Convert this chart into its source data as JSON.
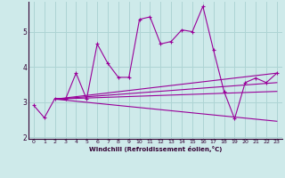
{
  "xlabel": "Windchill (Refroidissement éolien,°C)",
  "ylabel": "",
  "bg_color": "#ceeaea",
  "grid_color": "#aed4d4",
  "line_color": "#990099",
  "xlim": [
    -0.5,
    23.5
  ],
  "ylim": [
    1.95,
    5.85
  ],
  "xticks": [
    0,
    1,
    2,
    3,
    4,
    5,
    6,
    7,
    8,
    9,
    10,
    11,
    12,
    13,
    14,
    15,
    16,
    17,
    18,
    19,
    20,
    21,
    22,
    23
  ],
  "yticks": [
    2,
    3,
    4,
    5
  ],
  "main_x": [
    0,
    1,
    2,
    3,
    4,
    5,
    6,
    7,
    8,
    9,
    10,
    11,
    12,
    13,
    14,
    15,
    16,
    17,
    18,
    19,
    20,
    21,
    22,
    23
  ],
  "main_y": [
    2.9,
    2.55,
    3.1,
    3.08,
    3.82,
    3.08,
    4.65,
    4.1,
    3.7,
    3.7,
    5.35,
    5.42,
    4.65,
    4.72,
    5.05,
    5.0,
    5.72,
    4.48,
    3.3,
    2.52,
    3.55,
    3.68,
    3.55,
    3.82
  ],
  "reg_lines": [
    {
      "x": [
        2,
        23
      ],
      "y": [
        3.08,
        3.82
      ]
    },
    {
      "x": [
        2,
        23
      ],
      "y": [
        3.08,
        3.55
      ]
    },
    {
      "x": [
        2,
        23
      ],
      "y": [
        3.08,
        3.3
      ]
    },
    {
      "x": [
        2,
        23
      ],
      "y": [
        3.08,
        2.45
      ]
    }
  ]
}
